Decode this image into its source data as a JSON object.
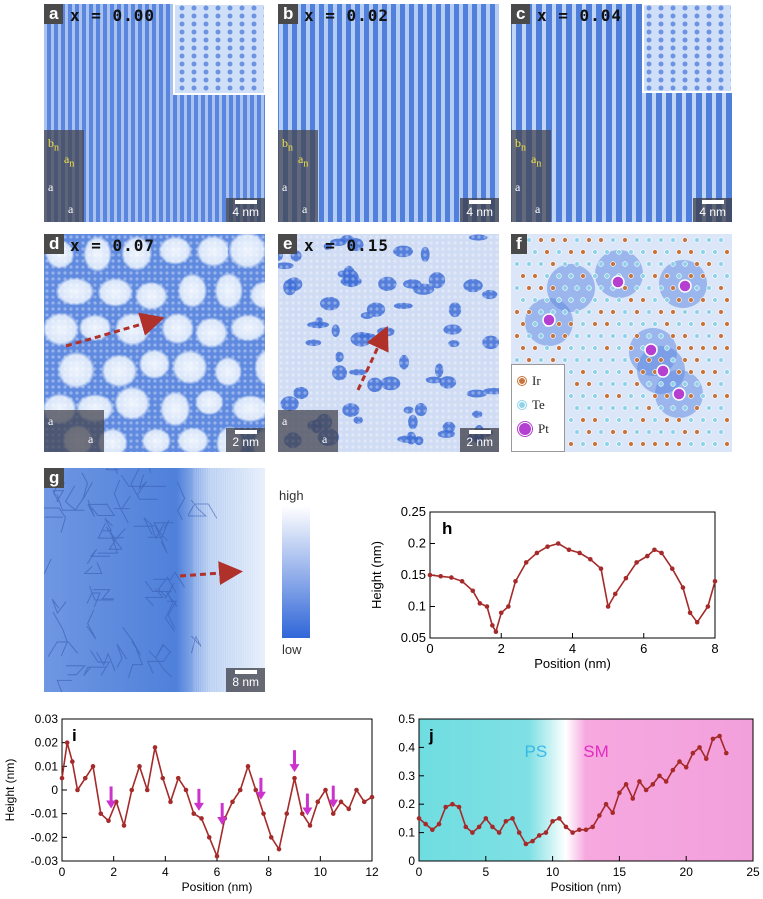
{
  "panels": {
    "a": {
      "label": "a",
      "x": "x = 0.00",
      "scale": "4 nm"
    },
    "b": {
      "label": "b",
      "x": "x = 0.02",
      "scale": "4 nm"
    },
    "c": {
      "label": "c",
      "x": "x = 0.04",
      "scale": "4 nm"
    },
    "d": {
      "label": "d",
      "x": "x = 0.07",
      "scale": "2 nm"
    },
    "e": {
      "label": "e",
      "x": "x = 0.15",
      "scale": "2 nm"
    },
    "f": {
      "label": "f"
    },
    "g": {
      "label": "g",
      "scale": "8 nm"
    },
    "h": {
      "label": "h"
    },
    "i": {
      "label": "i"
    },
    "j": {
      "label": "j"
    }
  },
  "axis_labels": {
    "a": "a",
    "b_n": "b",
    "a_n": "a",
    "n": "n"
  },
  "legend_f": [
    {
      "name": "Ir",
      "color": "#c8743a"
    },
    {
      "name": "Te",
      "color": "#8fd3ea"
    },
    {
      "name": "Pt",
      "color": "#b43fd0"
    }
  ],
  "colorbar": {
    "high": "high",
    "low": "low"
  },
  "colors": {
    "stm_dark": "#3d6fd6",
    "stm_light": "#e8f0fb",
    "curve": "#a52a2a",
    "arrow": "#b0302a",
    "ps_region": "#6fdde0",
    "sm_region": "#f2a0dc",
    "marker": "#cc33cc"
  },
  "chart_data": [
    {
      "type": "line",
      "id": "h",
      "xlabel": "Position (nm)",
      "ylabel": "Height (nm)",
      "xlim": [
        0,
        8
      ],
      "ylim": [
        0.05,
        0.25
      ],
      "xticks": [
        "0",
        "2",
        "4",
        "6",
        "8"
      ],
      "yticks": [
        "0.05",
        "0.1",
        "0.15",
        "0.2",
        "0.25"
      ],
      "x": [
        0,
        0.3,
        0.6,
        0.9,
        1.2,
        1.4,
        1.6,
        1.75,
        1.85,
        2.0,
        2.2,
        2.4,
        2.7,
        3.0,
        3.3,
        3.6,
        3.9,
        4.2,
        4.5,
        4.8,
        5.0,
        5.2,
        5.5,
        5.8,
        6.1,
        6.3,
        6.5,
        6.8,
        7.1,
        7.3,
        7.5,
        7.8,
        8.0
      ],
      "values": [
        0.15,
        0.148,
        0.146,
        0.14,
        0.125,
        0.105,
        0.1,
        0.07,
        0.06,
        0.09,
        0.1,
        0.14,
        0.17,
        0.185,
        0.195,
        0.2,
        0.19,
        0.185,
        0.175,
        0.16,
        0.1,
        0.12,
        0.145,
        0.17,
        0.18,
        0.19,
        0.185,
        0.16,
        0.13,
        0.09,
        0.075,
        0.1,
        0.14
      ]
    },
    {
      "type": "line",
      "id": "i",
      "xlabel": "Position (nm)",
      "ylabel": "Height (nm)",
      "xlim": [
        0,
        12
      ],
      "ylim": [
        -0.03,
        0.03
      ],
      "xticks": [
        "0",
        "2",
        "4",
        "6",
        "8",
        "10",
        "12"
      ],
      "yticks": [
        "-0.03",
        "-0.02",
        "-0.01",
        "0",
        "0.01",
        "0.02",
        "0.03"
      ],
      "x": [
        0,
        0.2,
        0.4,
        0.6,
        0.9,
        1.2,
        1.5,
        1.8,
        2.1,
        2.4,
        2.7,
        3.0,
        3.3,
        3.6,
        3.9,
        4.2,
        4.5,
        4.8,
        5.1,
        5.4,
        5.7,
        6.0,
        6.3,
        6.6,
        6.9,
        7.2,
        7.5,
        7.8,
        8.1,
        8.4,
        8.7,
        9.0,
        9.3,
        9.6,
        9.9,
        10.2,
        10.5,
        10.8,
        11.1,
        11.4,
        11.7,
        12.0
      ],
      "values": [
        0.005,
        0.02,
        0.012,
        0.0,
        0.005,
        0.01,
        -0.01,
        -0.013,
        -0.005,
        -0.015,
        0.0,
        0.01,
        0.0,
        0.018,
        0.005,
        -0.005,
        0.005,
        0.0,
        -0.01,
        -0.012,
        -0.02,
        -0.028,
        -0.012,
        -0.005,
        0.0,
        0.01,
        0.0,
        -0.01,
        -0.02,
        -0.025,
        -0.01,
        0.005,
        -0.01,
        -0.015,
        -0.005,
        0.0,
        -0.01,
        -0.005,
        -0.008,
        0.0,
        -0.005,
        -0.003
      ],
      "markers": [
        1.9,
        5.3,
        6.2,
        7.7,
        9.0,
        9.5,
        10.5
      ]
    },
    {
      "type": "line",
      "id": "j",
      "xlabel": "Position (nm)",
      "ylabel": "",
      "xlim": [
        0,
        25
      ],
      "ylim": [
        0,
        0.5
      ],
      "xticks": [
        "0",
        "5",
        "10",
        "15",
        "20",
        "25"
      ],
      "yticks": [
        "0",
        "0.1",
        "0.2",
        "0.3",
        "0.4",
        "0.5"
      ],
      "regions": [
        {
          "name": "PS",
          "from": 0,
          "to": 12.5
        },
        {
          "name": "SM",
          "from": 12.5,
          "to": 25
        }
      ],
      "x": [
        0,
        0.5,
        1,
        1.5,
        2,
        2.5,
        3,
        3.5,
        4,
        4.5,
        5,
        5.5,
        6,
        6.5,
        7,
        7.5,
        8,
        8.5,
        9,
        9.5,
        10,
        10.5,
        11,
        11.5,
        12,
        12.5,
        13,
        13.5,
        14,
        14.5,
        15,
        15.5,
        16,
        16.5,
        17,
        17.5,
        18,
        18.5,
        19,
        19.5,
        20,
        20.5,
        21,
        21.5,
        22,
        22.5,
        23
      ],
      "values": [
        0.15,
        0.13,
        0.11,
        0.13,
        0.19,
        0.2,
        0.19,
        0.12,
        0.1,
        0.12,
        0.15,
        0.12,
        0.1,
        0.14,
        0.15,
        0.1,
        0.06,
        0.07,
        0.09,
        0.1,
        0.14,
        0.15,
        0.12,
        0.1,
        0.11,
        0.11,
        0.12,
        0.16,
        0.2,
        0.17,
        0.24,
        0.27,
        0.22,
        0.28,
        0.25,
        0.27,
        0.3,
        0.28,
        0.32,
        0.35,
        0.33,
        0.38,
        0.4,
        0.36,
        0.43,
        0.44,
        0.38
      ]
    }
  ]
}
